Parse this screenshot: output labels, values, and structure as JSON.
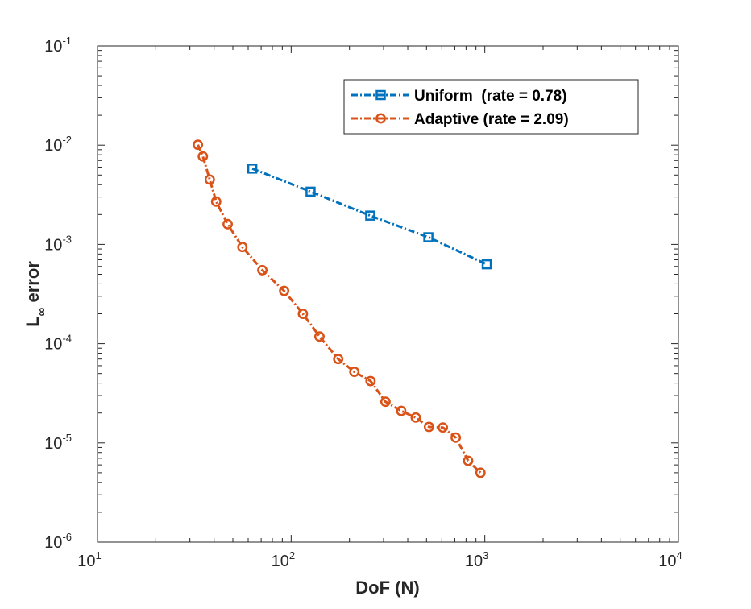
{
  "chart_data": {
    "type": "line",
    "scale": {
      "x": "log",
      "y": "log"
    },
    "xlabel": "DoF (N)",
    "ylabel_base": "L",
    "ylabel_subscript": "∞",
    "ylabel_rest": " error",
    "xlim": [
      10,
      10000
    ],
    "ylim": [
      1e-06,
      0.1
    ],
    "x_ticks": [
      {
        "base": "10",
        "exp": "1",
        "value": 10
      },
      {
        "base": "10",
        "exp": "2",
        "value": 100
      },
      {
        "base": "10",
        "exp": "3",
        "value": 1000
      },
      {
        "base": "10",
        "exp": "4",
        "value": 10000
      }
    ],
    "y_ticks": [
      {
        "base": "10",
        "exp": "-6",
        "value": 1e-06
      },
      {
        "base": "10",
        "exp": "-5",
        "value": 1e-05
      },
      {
        "base": "10",
        "exp": "-4",
        "value": 0.0001
      },
      {
        "base": "10",
        "exp": "-3",
        "value": 0.001
      },
      {
        "base": "10",
        "exp": "-2",
        "value": 0.01
      },
      {
        "base": "10",
        "exp": "-1",
        "value": 0.1
      }
    ],
    "legend_position": "top-right",
    "series": [
      {
        "name": "Uniform  (rate = 0.78)",
        "color": "#0072BD",
        "marker": "square",
        "x": [
          63,
          126,
          256,
          511,
          1023
        ],
        "y": [
          0.0058,
          0.0034,
          0.00195,
          0.00118,
          0.00063
        ]
      },
      {
        "name": "Adaptive (rate = 2.09)",
        "color": "#D95319",
        "marker": "circle",
        "x": [
          33,
          35,
          38,
          41,
          47,
          56,
          71,
          92,
          115,
          140,
          175,
          212,
          257,
          307,
          370,
          440,
          515,
          607,
          708,
          820,
          950
        ],
        "y": [
          0.0101,
          0.0077,
          0.0045,
          0.0027,
          0.0016,
          0.00094,
          0.00055,
          0.00034,
          0.0002,
          0.000118,
          7e-05,
          5.2e-05,
          4.2e-05,
          2.6e-05,
          2.1e-05,
          1.8e-05,
          1.45e-05,
          1.43e-05,
          1.13e-05,
          6.6e-06,
          5e-06
        ]
      }
    ]
  }
}
